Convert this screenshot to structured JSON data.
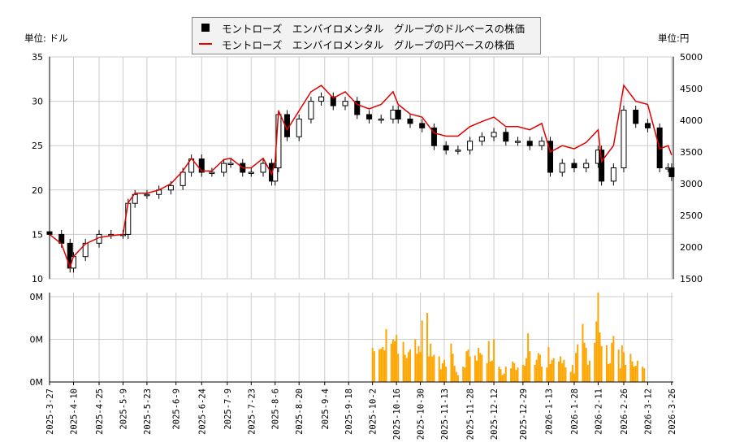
{
  "chart_data": [
    {
      "type": "candlestick+line",
      "legend": {
        "placement": "top-center",
        "usd_label": "モントローズ　エンバイロメンタル　グループのドルベースの株価",
        "jpy_label": "モントローズ　エンバイロメンタル　グループの円ベースの株価"
      },
      "left_unit": "単位: ドル",
      "right_unit": "単位:円",
      "ylim_left": [
        10,
        35
      ],
      "ylim_right": [
        1500,
        5000
      ],
      "yticks_left": [
        "10",
        "15",
        "20",
        "25",
        "30",
        "35"
      ],
      "yticks_right": [
        "1500",
        "2000",
        "2500",
        "3000",
        "3500",
        "4000",
        "4500",
        "5000"
      ],
      "grid": true,
      "colors": {
        "usd": "#000000",
        "jpy": "#e00000"
      },
      "dates": [
        "2025-03-27",
        "2025-04-03",
        "2025-04-08",
        "2025-04-10",
        "2025-04-17",
        "2025-04-25",
        "2025-05-02",
        "2025-05-09",
        "2025-05-12",
        "2025-05-16",
        "2025-05-23",
        "2025-05-30",
        "2025-06-06",
        "2025-06-13",
        "2025-06-18",
        "2025-06-24",
        "2025-06-30",
        "2025-07-07",
        "2025-07-11",
        "2025-07-18",
        "2025-07-23",
        "2025-07-30",
        "2025-08-04",
        "2025-08-06",
        "2025-08-08",
        "2025-08-13",
        "2025-08-20",
        "2025-08-27",
        "2025-09-02",
        "2025-09-09",
        "2025-09-16",
        "2025-09-23",
        "2025-09-30",
        "2025-10-07",
        "2025-10-14",
        "2025-10-17",
        "2025-10-24",
        "2025-10-31",
        "2025-11-07",
        "2025-11-14",
        "2025-11-21",
        "2025-11-28",
        "2025-12-05",
        "2025-12-12",
        "2025-12-19",
        "2025-12-26",
        "2026-01-02",
        "2026-01-09",
        "2026-01-14",
        "2026-01-21",
        "2026-01-28",
        "2026-02-04",
        "2026-02-11",
        "2026-02-13",
        "2026-02-20",
        "2026-02-26",
        "2026-03-05",
        "2026-03-12",
        "2026-03-19",
        "2026-03-24",
        "2026-03-26"
      ],
      "usd_close": [
        15,
        14,
        11.2,
        12.5,
        14,
        15,
        15,
        15,
        18.5,
        19.5,
        19.5,
        20,
        20.5,
        22,
        23.5,
        22,
        22,
        23,
        23,
        22,
        22,
        23,
        21,
        22.5,
        28.5,
        26,
        28,
        30,
        30.5,
        29.5,
        30,
        28.5,
        28,
        28,
        29,
        28,
        27.5,
        27,
        25,
        24.5,
        24.5,
        25.5,
        26,
        26.5,
        25.5,
        25.5,
        25,
        25.5,
        22,
        23,
        22.5,
        23,
        24.5,
        21,
        22.5,
        29,
        27.5,
        27,
        22.5,
        22.5,
        21.5
      ],
      "jpy_close": [
        2200,
        2050,
        1680,
        1850,
        2050,
        2150,
        2180,
        2200,
        2700,
        2850,
        2850,
        2900,
        3000,
        3200,
        3400,
        3200,
        3200,
        3380,
        3400,
        3250,
        3250,
        3400,
        3150,
        3350,
        4150,
        3850,
        4150,
        4450,
        4550,
        4350,
        4450,
        4250,
        4180,
        4250,
        4450,
        4250,
        4100,
        4050,
        3800,
        3750,
        3750,
        3900,
        3980,
        4050,
        3900,
        3900,
        3850,
        3950,
        3500,
        3600,
        3550,
        3650,
        3850,
        3350,
        3600,
        4550,
        4300,
        4250,
        3550,
        3600,
        3450
      ],
      "xticks": [
        "2025-3-27",
        "2025-4-10",
        "2025-4-25",
        "2025-5-9",
        "2025-5-23",
        "2025-6-9",
        "2025-6-24",
        "2025-7-9",
        "2025-7-23",
        "2025-8-6",
        "2025-8-20",
        "2025-9-4",
        "2025-9-18",
        "2025-10-2",
        "2025-10-16",
        "2025-10-30",
        "2025-11-13",
        "2025-11-28",
        "2025-12-12",
        "2025-12-29",
        "2026-1-13",
        "2026-1-28",
        "2026-2-11",
        "2026-2-26",
        "2026-3-12",
        "2026-3-26"
      ]
    },
    {
      "type": "bar",
      "yticks": [
        "0M",
        "0M",
        "0M"
      ],
      "color": "#ffa500",
      "volume_start": "2025-10-02",
      "volume_relative": [
        0.4,
        0.36,
        0.38,
        0.39,
        0.41,
        0.37,
        0.62,
        0.45,
        0.5,
        0.48,
        0.55,
        0.33,
        0.47,
        0.32,
        0.28,
        0.35,
        0.38,
        0.5,
        0.33,
        0.42,
        0.35,
        0.72,
        0.81,
        0.3,
        0.45,
        0.3,
        0.32,
        0.3,
        0.15,
        0.22,
        0.26,
        0.18,
        0.45,
        0.33,
        0.19,
        0.12,
        0.08,
        0.18,
        0.17,
        0.36,
        0.38,
        0.3,
        0.31,
        0.25,
        0.4,
        0.34,
        0.32,
        0.22,
        0.48,
        0.24,
        0.25,
        0.5,
        0.18,
        0.15,
        0.08,
        0.1,
        0.18,
        0.16,
        0.24,
        0.22,
        0.14,
        0.17,
        0.2,
        0.19,
        0.28,
        0.57,
        0.36,
        0.2,
        0.26,
        0.34,
        0.32,
        0.18,
        0.17,
        0.41,
        0.21,
        0.26,
        0.28,
        0.24,
        0.3,
        0.22,
        0.26,
        0.17,
        0.12,
        0.2,
        0.1,
        0.34,
        0.44,
        0.68,
        0.46,
        0.4,
        0.2,
        0.25,
        0.46,
        0.71,
        1.05,
        0.58,
        0.42,
        0.43,
        0.21,
        0.22,
        0.46,
        0.54,
        0.38,
        0.16,
        0.43,
        0.35,
        0.2,
        0.33,
        0.24,
        0.18,
        0.19,
        0.25,
        0.18,
        0.16
      ]
    }
  ]
}
